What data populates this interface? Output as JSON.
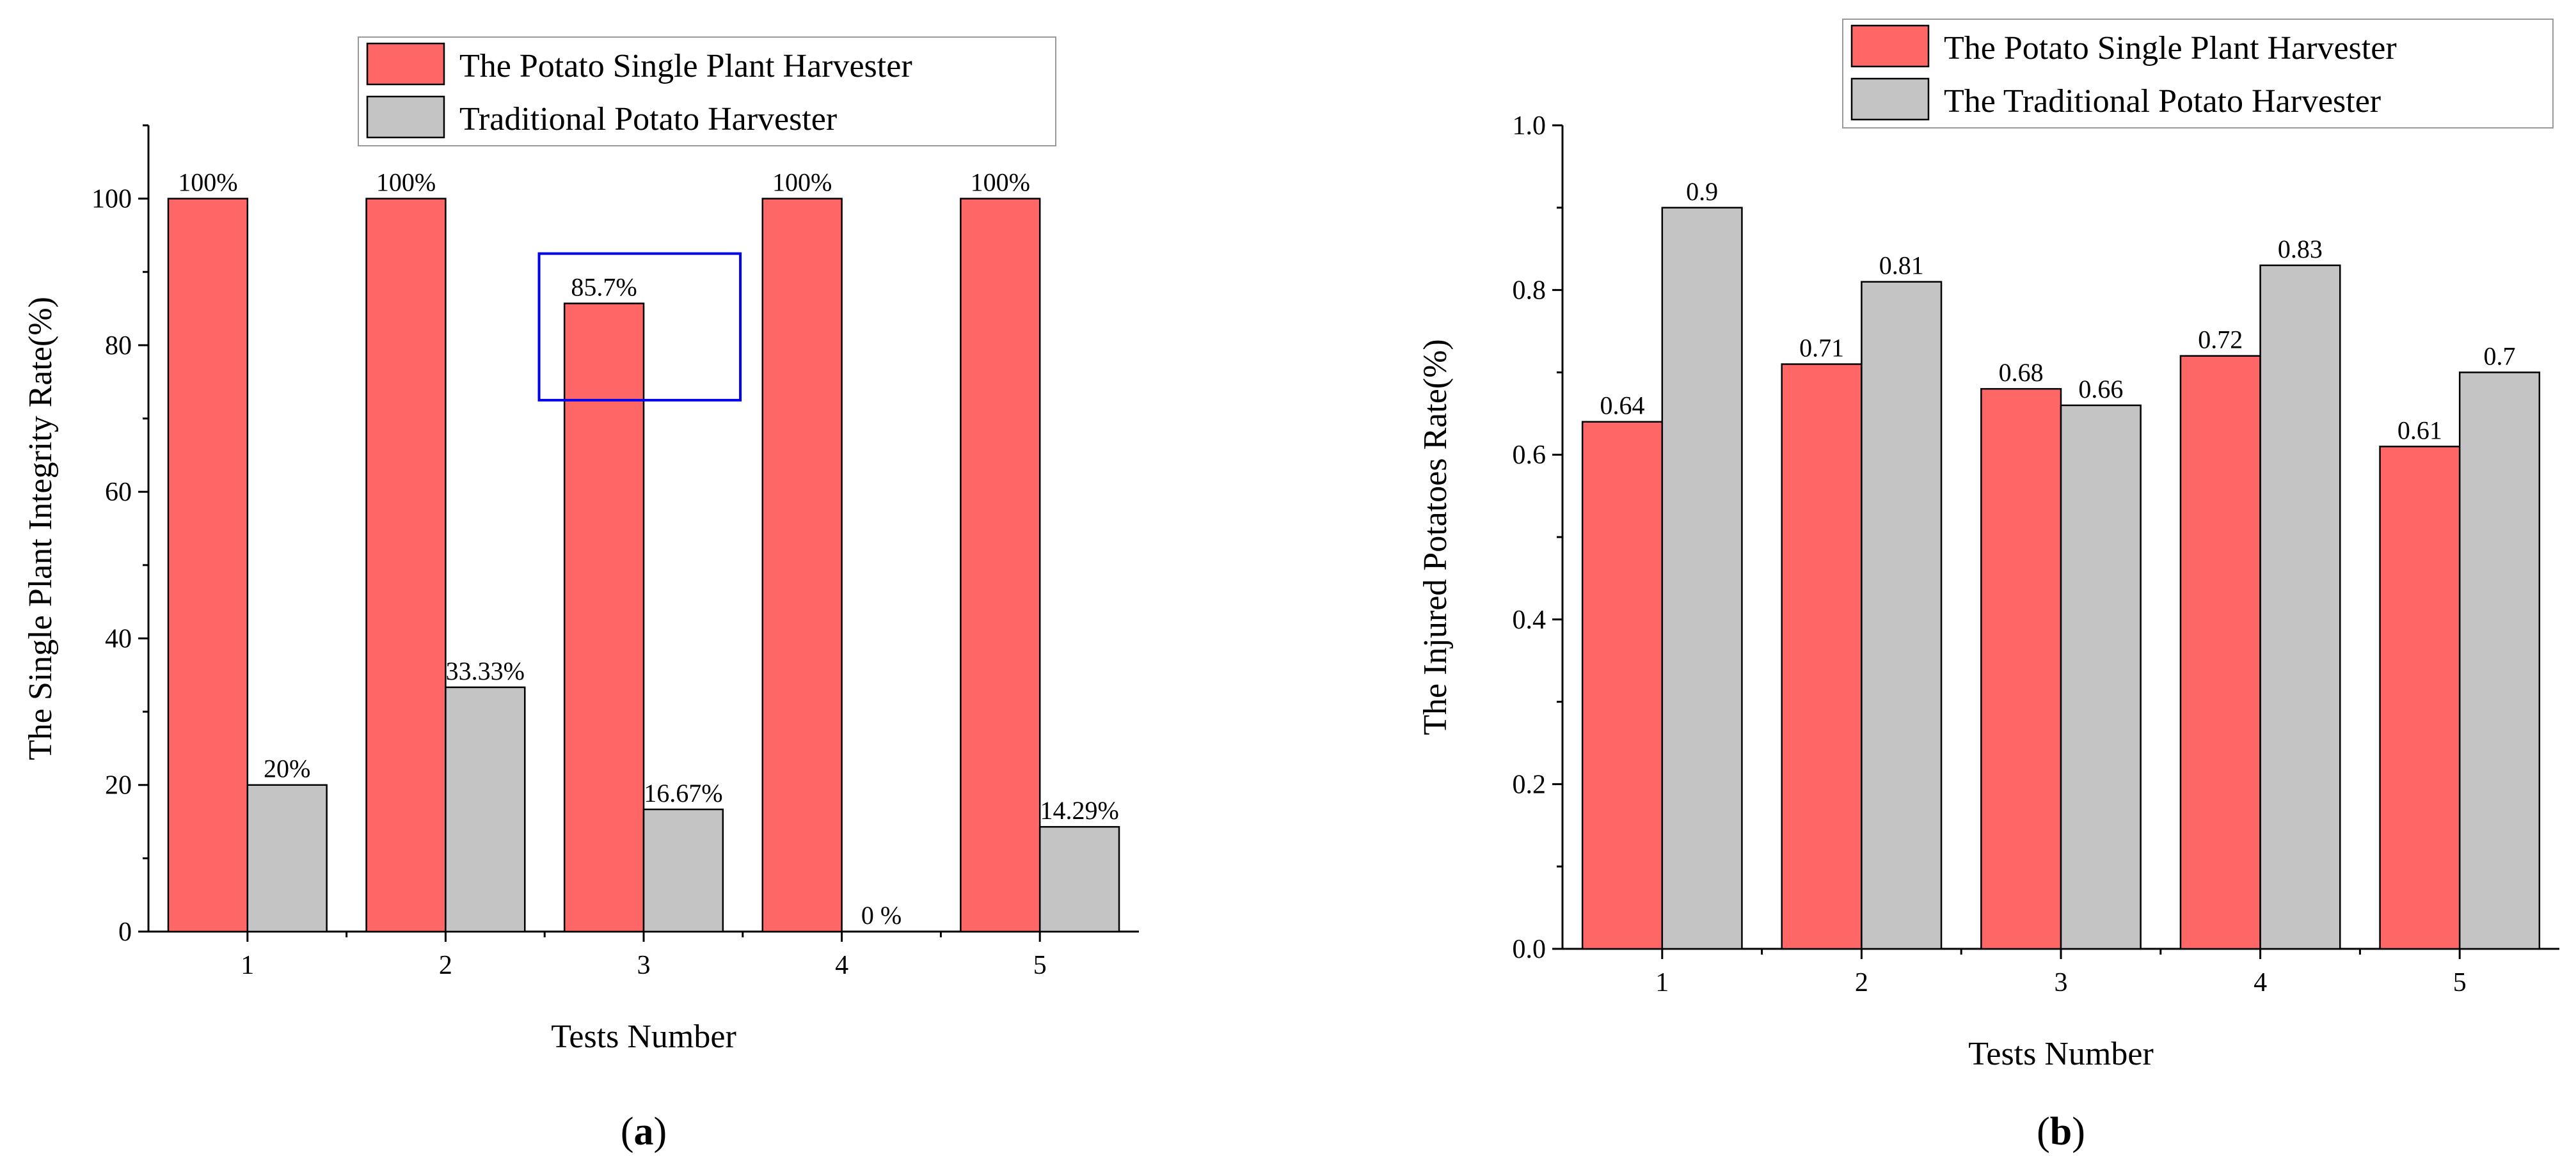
{
  "colors": {
    "series_primary": "#FF6666",
    "series_secondary": "#C4C4C4",
    "highlight_box": "#0000EE",
    "axis": "#000000"
  },
  "chart_data": [
    {
      "panel_label_prefix": "(",
      "panel_label": "a",
      "panel_label_suffix": ")",
      "type": "bar",
      "title": "",
      "xlabel": "Tests Number",
      "ylabel": "The Single Plant Integrity Rate(%)",
      "ylim": [
        0,
        110
      ],
      "yticks": [
        0,
        20,
        40,
        60,
        80,
        100
      ],
      "ytick_labels": [
        "0",
        "20",
        "40",
        "60",
        "80",
        "100"
      ],
      "categories": [
        "1",
        "2",
        "3",
        "4",
        "5"
      ],
      "grid": false,
      "legend_position": "top-center",
      "series": [
        {
          "name": "The Potato Single Plant Harvester",
          "values": [
            100,
            100,
            85.7,
            100,
            100
          ],
          "labels": [
            "100%",
            "100%",
            "85.7%",
            "100%",
            "100%"
          ]
        },
        {
          "name": "Traditional Potato Harvester",
          "values": [
            20,
            33.33,
            16.67,
            0,
            14.29
          ],
          "labels": [
            "20%",
            "33.33%",
            "16.67%",
            "0 %",
            "14.29%"
          ]
        }
      ],
      "annotations": [
        {
          "type": "highlight-box",
          "category": "3",
          "series": 0,
          "y_range": [
            72.5,
            92.5
          ]
        }
      ]
    },
    {
      "panel_label_prefix": "(",
      "panel_label": "b",
      "panel_label_suffix": ")",
      "type": "bar",
      "title": "",
      "xlabel": "Tests Number",
      "ylabel": "The Injured Potatoes Rate(%)",
      "ylim": [
        0,
        1.0
      ],
      "yticks": [
        0,
        0.2,
        0.4,
        0.6,
        0.8,
        1.0
      ],
      "ytick_labels": [
        "0.0",
        "0.2",
        "0.4",
        "0.6",
        "0.8",
        "1.0"
      ],
      "categories": [
        "1",
        "2",
        "3",
        "4",
        "5"
      ],
      "grid": false,
      "legend_position": "top-right",
      "series": [
        {
          "name": "The Potato Single Plant Harvester",
          "values": [
            0.64,
            0.71,
            0.68,
            0.72,
            0.61
          ],
          "labels": [
            "0.64",
            "0.71",
            "0.68",
            "0.72",
            "0.61"
          ]
        },
        {
          "name": "The Traditional Potato Harvester",
          "values": [
            0.9,
            0.81,
            0.66,
            0.83,
            0.7
          ],
          "labels": [
            "0.9",
            "0.81",
            "0.66",
            "0.83",
            "0.7"
          ]
        }
      ],
      "annotations": []
    }
  ]
}
